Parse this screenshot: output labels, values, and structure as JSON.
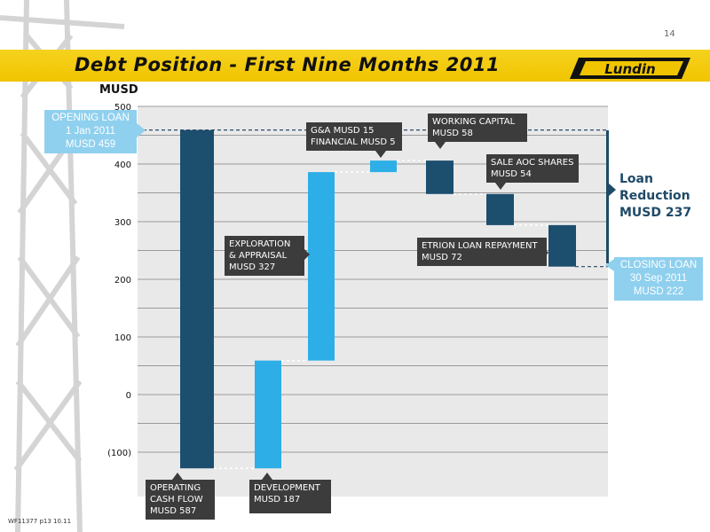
{
  "page_number": "14",
  "title": "Debt Position - First Nine Months 2011",
  "logo_text": "Lundin",
  "footnote": "WF11377 p13 10.11",
  "colors": {
    "dark_bar": "#1c4e6e",
    "light_bar": "#2daee6",
    "band": "#f0c400",
    "callout": "#3c3c3c",
    "info_box": "#8fd0ee"
  },
  "opening_box": [
    "OPENING LOAN",
    "1 Jan 2011",
    "MUSD 459"
  ],
  "closing_box": [
    "CLOSING LOAN",
    "30 Sep 2011",
    "MUSD 222"
  ],
  "reduction": [
    "Loan",
    "Reduction",
    "MUSD 237"
  ],
  "callouts": {
    "operating": [
      "OPERATING",
      "CASH FLOW",
      "MUSD 587"
    ],
    "development": [
      "DEVELOPMENT",
      "MUSD  187"
    ],
    "exploration": [
      "EXPLORATION",
      "& APPRAISAL",
      "MUSD 327"
    ],
    "ga": [
      "G&A MUSD 15",
      "FINANCIAL MUSD 5"
    ],
    "working": [
      "WORKING CAPITAL",
      "MUSD 58"
    ],
    "aoc": [
      "SALE AOC SHARES",
      "MUSD 54"
    ],
    "etrion": [
      "ETRION LOAN REPAYMENT",
      "MUSD 72"
    ]
  },
  "chart_data": {
    "type": "bar",
    "subtype": "waterfall",
    "ylabel": "MUSD",
    "ylim": [
      -130,
      500
    ],
    "yticks": [
      500,
      400,
      300,
      200,
      100,
      0,
      -100
    ],
    "ytick_labels": [
      "500",
      "400",
      "300",
      "200",
      "100",
      "0",
      "(100)"
    ],
    "grid": true,
    "reference_lines": [
      459,
      222
    ],
    "bars": [
      {
        "name": "Operating cash flow",
        "start": -128,
        "end": 459,
        "style": "dark"
      },
      {
        "name": "Development",
        "start": -128,
        "end": 59,
        "style": "light"
      },
      {
        "name": "Exploration & appraisal",
        "start": 59,
        "end": 386,
        "style": "light"
      },
      {
        "name": "G&A and financial",
        "start": 386,
        "end": 406,
        "style": "light"
      },
      {
        "name": "Working capital",
        "start": 348,
        "end": 406,
        "style": "dark"
      },
      {
        "name": "Sale AOC shares",
        "start": 294,
        "end": 348,
        "style": "dark"
      },
      {
        "name": "Etrion loan repayment",
        "start": 222,
        "end": 294,
        "style": "dark"
      }
    ]
  }
}
